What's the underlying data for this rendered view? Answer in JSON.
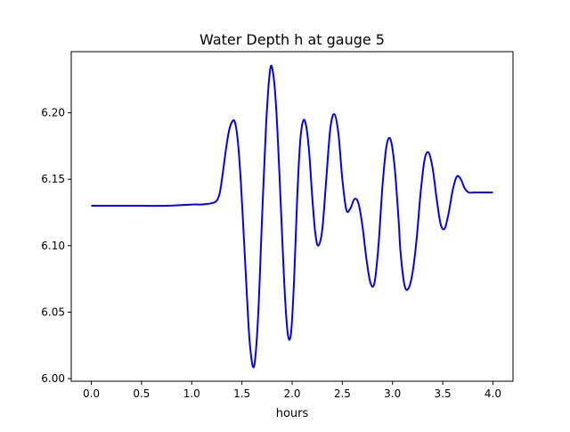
{
  "chart_data": {
    "type": "line",
    "title": "Water Depth h at gauge 5",
    "xlabel": "hours",
    "ylabel": "",
    "xlim": [
      -0.2,
      4.2
    ],
    "ylim": [
      5.998,
      6.246
    ],
    "xticks": [
      0.0,
      0.5,
      1.0,
      1.5,
      2.0,
      2.5,
      3.0,
      3.5,
      4.0
    ],
    "xtick_labels": [
      "0.0",
      "0.5",
      "1.0",
      "1.5",
      "2.0",
      "2.5",
      "3.0",
      "3.5",
      "4.0"
    ],
    "yticks": [
      6.0,
      6.05,
      6.1,
      6.15,
      6.2
    ],
    "ytick_labels": [
      "6.00",
      "6.05",
      "6.10",
      "6.15",
      "6.20"
    ],
    "grid": false,
    "series": [
      {
        "color": "#0000ff",
        "x": [
          0.0,
          0.25,
          0.5,
          0.75,
          1.0,
          1.1,
          1.2,
          1.25,
          1.28,
          1.31,
          1.34,
          1.37,
          1.4,
          1.43,
          1.46,
          1.49,
          1.52,
          1.55,
          1.58,
          1.62,
          1.66,
          1.7,
          1.74,
          1.78,
          1.81,
          1.84,
          1.87,
          1.9,
          1.93,
          1.96,
          1.99,
          2.02,
          2.05,
          2.08,
          2.11,
          2.14,
          2.17,
          2.2,
          2.23,
          2.26,
          2.3,
          2.34,
          2.38,
          2.42,
          2.46,
          2.5,
          2.54,
          2.58,
          2.62,
          2.66,
          2.7,
          2.74,
          2.78,
          2.82,
          2.86,
          2.9,
          2.94,
          2.98,
          3.02,
          3.06,
          3.08,
          3.12,
          3.16,
          3.2,
          3.24,
          3.28,
          3.32,
          3.36,
          3.4,
          3.44,
          3.48,
          3.52,
          3.56,
          3.6,
          3.64,
          3.68,
          3.72,
          3.76,
          3.8,
          3.84,
          3.88,
          3.92,
          3.96,
          4.0
        ],
        "y": [
          6.13,
          6.13,
          6.13,
          6.13,
          6.131,
          6.131,
          6.132,
          6.134,
          6.14,
          6.155,
          6.172,
          6.186,
          6.193,
          6.193,
          6.178,
          6.147,
          6.105,
          6.062,
          6.025,
          6.009,
          6.045,
          6.12,
          6.19,
          6.232,
          6.23,
          6.205,
          6.16,
          6.108,
          6.06,
          6.032,
          6.035,
          6.075,
          6.135,
          6.178,
          6.194,
          6.19,
          6.17,
          6.137,
          6.11,
          6.1,
          6.112,
          6.15,
          6.188,
          6.199,
          6.185,
          6.15,
          6.127,
          6.128,
          6.135,
          6.132,
          6.115,
          6.09,
          6.072,
          6.072,
          6.1,
          6.145,
          6.175,
          6.18,
          6.16,
          6.12,
          6.095,
          6.07,
          6.068,
          6.08,
          6.105,
          6.14,
          6.165,
          6.17,
          6.158,
          6.135,
          6.116,
          6.113,
          6.125,
          6.142,
          6.152,
          6.15,
          6.143,
          6.14,
          6.14,
          6.14,
          6.14,
          6.14,
          6.14,
          6.14
        ]
      }
    ]
  }
}
